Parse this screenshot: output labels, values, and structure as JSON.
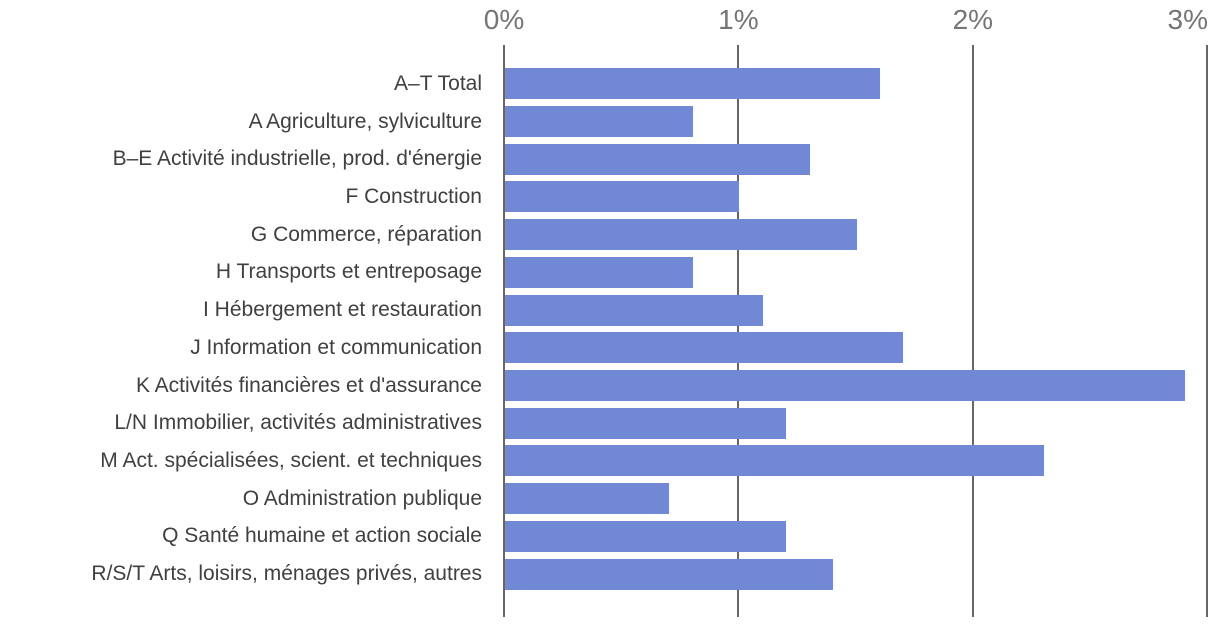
{
  "chart_data": {
    "type": "bar",
    "orientation": "horizontal",
    "title": "",
    "xlabel": "",
    "ylabel": "",
    "unit": "%",
    "categories": [
      "A–T Total",
      "A Agriculture, sylviculture",
      "B–E Activité industrielle, prod. d'énergie",
      "F Construction",
      "G Commerce, réparation",
      "H Transports et entreposage",
      "I Hébergement et restauration",
      "J Information et communication",
      "K Activités financières et d'assurance",
      "L/N Immobilier, activités administratives",
      "M Act. spécialisées, scient. et techniques",
      "O Administration publique",
      "Q Santé humaine et action sociale",
      "R/S/T Arts, loisirs, ménages privés, autres"
    ],
    "values": [
      1.6,
      0.8,
      1.3,
      1.0,
      1.5,
      0.8,
      1.1,
      1.7,
      2.9,
      1.2,
      2.3,
      0.7,
      1.2,
      1.4
    ],
    "x_axis": {
      "position": "top",
      "tick_labels": [
        "0%",
        "1%",
        "2%",
        "3%"
      ],
      "tick_values": [
        0,
        1,
        2,
        3
      ],
      "xlim": [
        0,
        3.05
      ]
    },
    "grid": true,
    "legend": "none",
    "colors": {
      "bar": "#7189d5",
      "gridline": "#666666",
      "axis_label": "#757575",
      "category_label": "#404040",
      "background": "#ffffff"
    }
  }
}
